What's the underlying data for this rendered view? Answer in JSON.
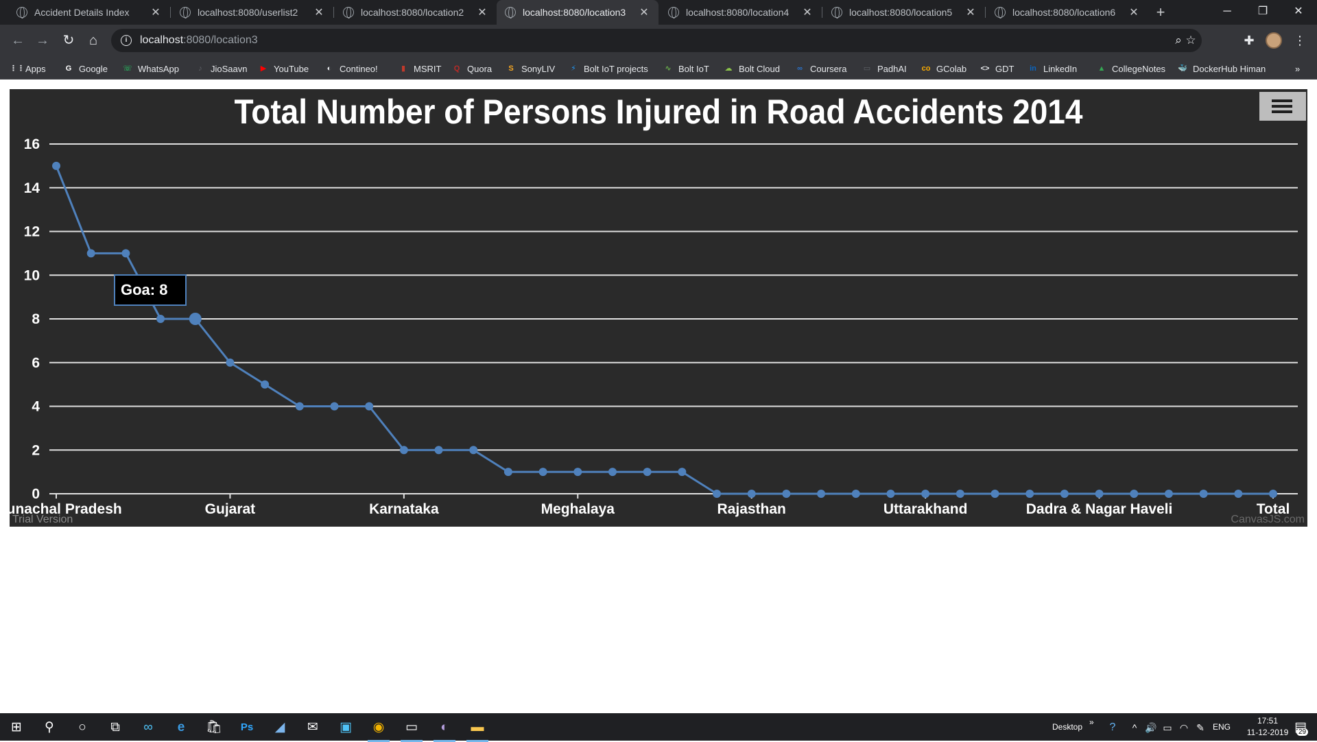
{
  "browser": {
    "tabs": [
      {
        "label": "Accident Details Index",
        "active": false
      },
      {
        "label": "localhost:8080/userlist2",
        "active": false
      },
      {
        "label": "localhost:8080/location2",
        "active": false
      },
      {
        "label": "localhost:8080/location3",
        "active": true
      },
      {
        "label": "localhost:8080/location4",
        "active": false
      },
      {
        "label": "localhost:8080/location5",
        "active": false
      },
      {
        "label": "localhost:8080/location6",
        "active": false
      }
    ],
    "address": {
      "host": "localhost",
      "path": ":8080/location3"
    },
    "bookmarks": [
      {
        "label": "Apps",
        "icon": "apps-grid-icon",
        "color": "#e8eaed"
      },
      {
        "label": "Google",
        "icon": "google-icon",
        "color": "#ffffff"
      },
      {
        "label": "WhatsApp",
        "icon": "whatsapp-icon",
        "color": "#25d366"
      },
      {
        "label": "JioSaavn",
        "icon": "jiosaavn-icon",
        "color": "#5f6368"
      },
      {
        "label": "YouTube",
        "icon": "youtube-icon",
        "color": "#ff0000"
      },
      {
        "label": "Contineo!",
        "icon": "contineo-icon",
        "color": "#e8eaed"
      },
      {
        "label": "MSRIT",
        "icon": "msrit-icon",
        "color": "#c0392b"
      },
      {
        "label": "Quora",
        "icon": "quora-icon",
        "color": "#b92b27"
      },
      {
        "label": "SonyLIV",
        "icon": "sonyliv-icon",
        "color": "#f5a623"
      },
      {
        "label": "Bolt IoT projects",
        "icon": "bolt-projects-icon",
        "color": "#2196f3"
      },
      {
        "label": "Bolt IoT",
        "icon": "bolt-iot-icon",
        "color": "#6ab04c"
      },
      {
        "label": "Bolt Cloud",
        "icon": "bolt-cloud-icon",
        "color": "#8bc34a"
      },
      {
        "label": "Coursera",
        "icon": "coursera-icon",
        "color": "#2a73cc"
      },
      {
        "label": "PadhAI",
        "icon": "padhai-icon",
        "color": "#5f6368"
      },
      {
        "label": "GColab",
        "icon": "colab-icon",
        "color": "#f9ab00"
      },
      {
        "label": "GDT",
        "icon": "gdt-icon",
        "color": "#e8eaed"
      },
      {
        "label": "LinkedIn",
        "icon": "linkedin-icon",
        "color": "#0a66c2"
      },
      {
        "label": "CollegeNotes",
        "icon": "google-drive-icon",
        "color": "#34a853"
      },
      {
        "label": "DockerHub Himan",
        "icon": "docker-icon",
        "color": "#2496ed"
      }
    ],
    "bookmarks_overflow": "»"
  },
  "chart_data": {
    "type": "line",
    "title": "Total Number of Persons Injured in Road Accidents 2014",
    "x_tick_labels": [
      "Arunachal Pradesh",
      "Gujarat",
      "Karnataka",
      "Meghalaya",
      "Rajasthan",
      "Uttarakhand",
      "Dadra & Nagar Haveli",
      "Total"
    ],
    "x_tick_indices": [
      0,
      5,
      10,
      15,
      20,
      25,
      30,
      35
    ],
    "values": [
      15,
      11,
      11,
      8,
      8,
      6,
      5,
      4,
      4,
      4,
      2,
      2,
      2,
      1,
      1,
      1,
      1,
      1,
      1,
      0,
      0,
      0,
      0,
      0,
      0,
      0,
      0,
      0,
      0,
      0,
      0,
      0,
      0,
      0,
      0,
      0
    ],
    "highlight_index": 4,
    "ylim": [
      0,
      16
    ],
    "y_ticks": [
      0,
      2,
      4,
      6,
      8,
      10,
      12,
      14,
      16
    ],
    "grid": true,
    "line_color": "#4f81bc",
    "background": "#2a2a2a",
    "tooltip": {
      "label": "Goa",
      "value": 8
    },
    "watermark_left": "Trial Version",
    "watermark_right": "CanvasJS.com"
  },
  "taskbar": {
    "desktop_label": "Desktop",
    "language": "ENG",
    "time": "17:51",
    "date": "11-12-2019",
    "notification_count": "29"
  }
}
